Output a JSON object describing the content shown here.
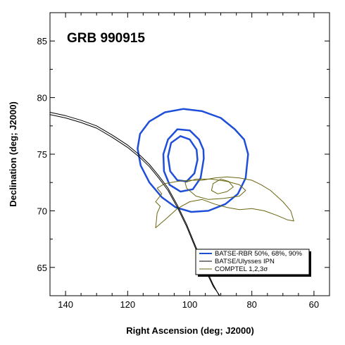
{
  "chart_data": {
    "type": "line",
    "title": "GRB 990915",
    "xlabel": "Right Ascension (deg; J2000)",
    "ylabel": "Declination (deg; J2000)",
    "xlim": [
      145,
      55
    ],
    "ylim": [
      62.5,
      87.5
    ],
    "x_reversed": true,
    "xticks": [
      140,
      120,
      100,
      80,
      60
    ],
    "yticks": [
      65,
      70,
      75,
      80,
      85
    ],
    "grid": false,
    "legend_position": "bottom-right",
    "colors": {
      "rbr": "#1f4fd8",
      "ipn": "#000000",
      "comptel": "#6b6610"
    },
    "legend": [
      {
        "key": "rbr",
        "label": "BATSE-RBR 50%, 68%, 90%"
      },
      {
        "key": "ipn",
        "label": "BATSE/Ulysses IPN"
      },
      {
        "key": "comptel",
        "label": "COMPTEL 1,2,3σ"
      }
    ],
    "series": [
      {
        "name": "BATSE-RBR 50%",
        "key": "rbr",
        "closed": true,
        "points": [
          [
            97.5,
            74.5
          ],
          [
            98.5,
            73.3
          ],
          [
            101,
            72.6
          ],
          [
            104,
            72.7
          ],
          [
            106.3,
            73.5
          ],
          [
            107,
            74.8
          ],
          [
            106,
            76
          ],
          [
            103,
            76.6
          ],
          [
            100,
            76.3
          ],
          [
            97.8,
            75.4
          ],
          [
            97.5,
            74.5
          ]
        ]
      },
      {
        "name": "BATSE-RBR 68%",
        "key": "rbr",
        "closed": true,
        "points": [
          [
            95.5,
            74.6
          ],
          [
            96.5,
            72.9
          ],
          [
            99,
            71.9
          ],
          [
            103,
            71.7
          ],
          [
            106.5,
            72.3
          ],
          [
            108.3,
            73.5
          ],
          [
            108.5,
            75
          ],
          [
            107,
            76.3
          ],
          [
            104,
            77.2
          ],
          [
            100,
            77.1
          ],
          [
            97,
            76.3
          ],
          [
            95.6,
            75.4
          ],
          [
            95.5,
            74.6
          ]
        ]
      },
      {
        "name": "BATSE-RBR 90%",
        "key": "rbr",
        "closed": true,
        "points": [
          [
            81.2,
            75
          ],
          [
            82,
            72.9
          ],
          [
            84.5,
            71.5
          ],
          [
            88.5,
            70.6
          ],
          [
            94,
            70
          ],
          [
            99.5,
            69.9
          ],
          [
            104.5,
            70.3
          ],
          [
            109,
            71.2
          ],
          [
            113,
            72.5
          ],
          [
            115.8,
            74
          ],
          [
            116.8,
            75.5
          ],
          [
            116,
            76.8
          ],
          [
            113,
            77.9
          ],
          [
            108,
            78.7
          ],
          [
            102,
            79
          ],
          [
            96,
            78.8
          ],
          [
            90,
            78.2
          ],
          [
            85.5,
            77.2
          ],
          [
            82.5,
            76.3
          ],
          [
            81.2,
            75
          ]
        ]
      },
      {
        "name": "BATSE/Ulysses IPN (a)",
        "key": "ipn",
        "closed": false,
        "points": [
          [
            145,
            78.7
          ],
          [
            140,
            78.4
          ],
          [
            135,
            78
          ],
          [
            130,
            77.5
          ],
          [
            125,
            76.7
          ],
          [
            120,
            75.8
          ],
          [
            116,
            74.9
          ],
          [
            113,
            74.1
          ],
          [
            110,
            73.1
          ],
          [
            107,
            72
          ],
          [
            104,
            70.5
          ],
          [
            101,
            68.8
          ],
          [
            98,
            66.8
          ],
          [
            95,
            65
          ],
          [
            92.5,
            63.5
          ],
          [
            90.5,
            62.5
          ]
        ]
      },
      {
        "name": "BATSE/Ulysses IPN (b)",
        "key": "ipn",
        "closed": false,
        "points": [
          [
            145,
            78.5
          ],
          [
            140,
            78.2
          ],
          [
            135,
            77.8
          ],
          [
            130,
            77.3
          ],
          [
            125,
            76.5
          ],
          [
            120,
            75.6
          ],
          [
            116,
            74.7
          ],
          [
            113,
            73.9
          ],
          [
            110,
            72.9
          ],
          [
            107,
            71.8
          ],
          [
            104,
            70.3
          ],
          [
            101,
            68.6
          ],
          [
            98,
            66.6
          ],
          [
            95,
            64.8
          ],
          [
            92.4,
            63.3
          ],
          [
            90.3,
            62.5
          ]
        ]
      },
      {
        "name": "COMPTEL 1σ",
        "key": "comptel",
        "closed": true,
        "points": [
          [
            93,
            71.8
          ],
          [
            91,
            71.5
          ],
          [
            88,
            71.7
          ],
          [
            86,
            72.1
          ],
          [
            87.5,
            72.6
          ],
          [
            90,
            72.8
          ],
          [
            92.5,
            72.4
          ],
          [
            93,
            71.8
          ]
        ]
      },
      {
        "name": "COMPTEL 2σ",
        "key": "comptel",
        "closed": true,
        "points": [
          [
            101,
            72
          ],
          [
            98,
            71.3
          ],
          [
            94,
            71
          ],
          [
            89,
            71.1
          ],
          [
            84,
            71.3
          ],
          [
            82,
            71.8
          ],
          [
            84,
            72.3
          ],
          [
            88,
            72.6
          ],
          [
            93,
            72.8
          ],
          [
            98,
            72.8
          ],
          [
            101.5,
            72.5
          ],
          [
            101,
            72
          ]
        ]
      },
      {
        "name": "COMPTEL 3σ",
        "key": "comptel",
        "closed": true,
        "points": [
          [
            111,
            68.5
          ],
          [
            108,
            69.2
          ],
          [
            104,
            70.2
          ],
          [
            100,
            70.8
          ],
          [
            96,
            71
          ],
          [
            92,
            70.6
          ],
          [
            88,
            70.3
          ],
          [
            84,
            70.1
          ],
          [
            80,
            70.2
          ],
          [
            76,
            70
          ],
          [
            72,
            69.6
          ],
          [
            68.5,
            69.2
          ],
          [
            66.5,
            69.1
          ],
          [
            67.5,
            70
          ],
          [
            70,
            70.8
          ],
          [
            74,
            71.8
          ],
          [
            77,
            72.3
          ],
          [
            80,
            72.7
          ],
          [
            84,
            72.9
          ],
          [
            88,
            73
          ],
          [
            92,
            72.9
          ],
          [
            96,
            72.7
          ],
          [
            100,
            72.7
          ],
          [
            104,
            72.6
          ],
          [
            108,
            72.4
          ],
          [
            110.5,
            72
          ],
          [
            109,
            71.5
          ],
          [
            111,
            70.8
          ],
          [
            109.5,
            70.4
          ],
          [
            110.5,
            69.8
          ],
          [
            110.8,
            69
          ],
          [
            111,
            68.5
          ]
        ]
      }
    ]
  }
}
